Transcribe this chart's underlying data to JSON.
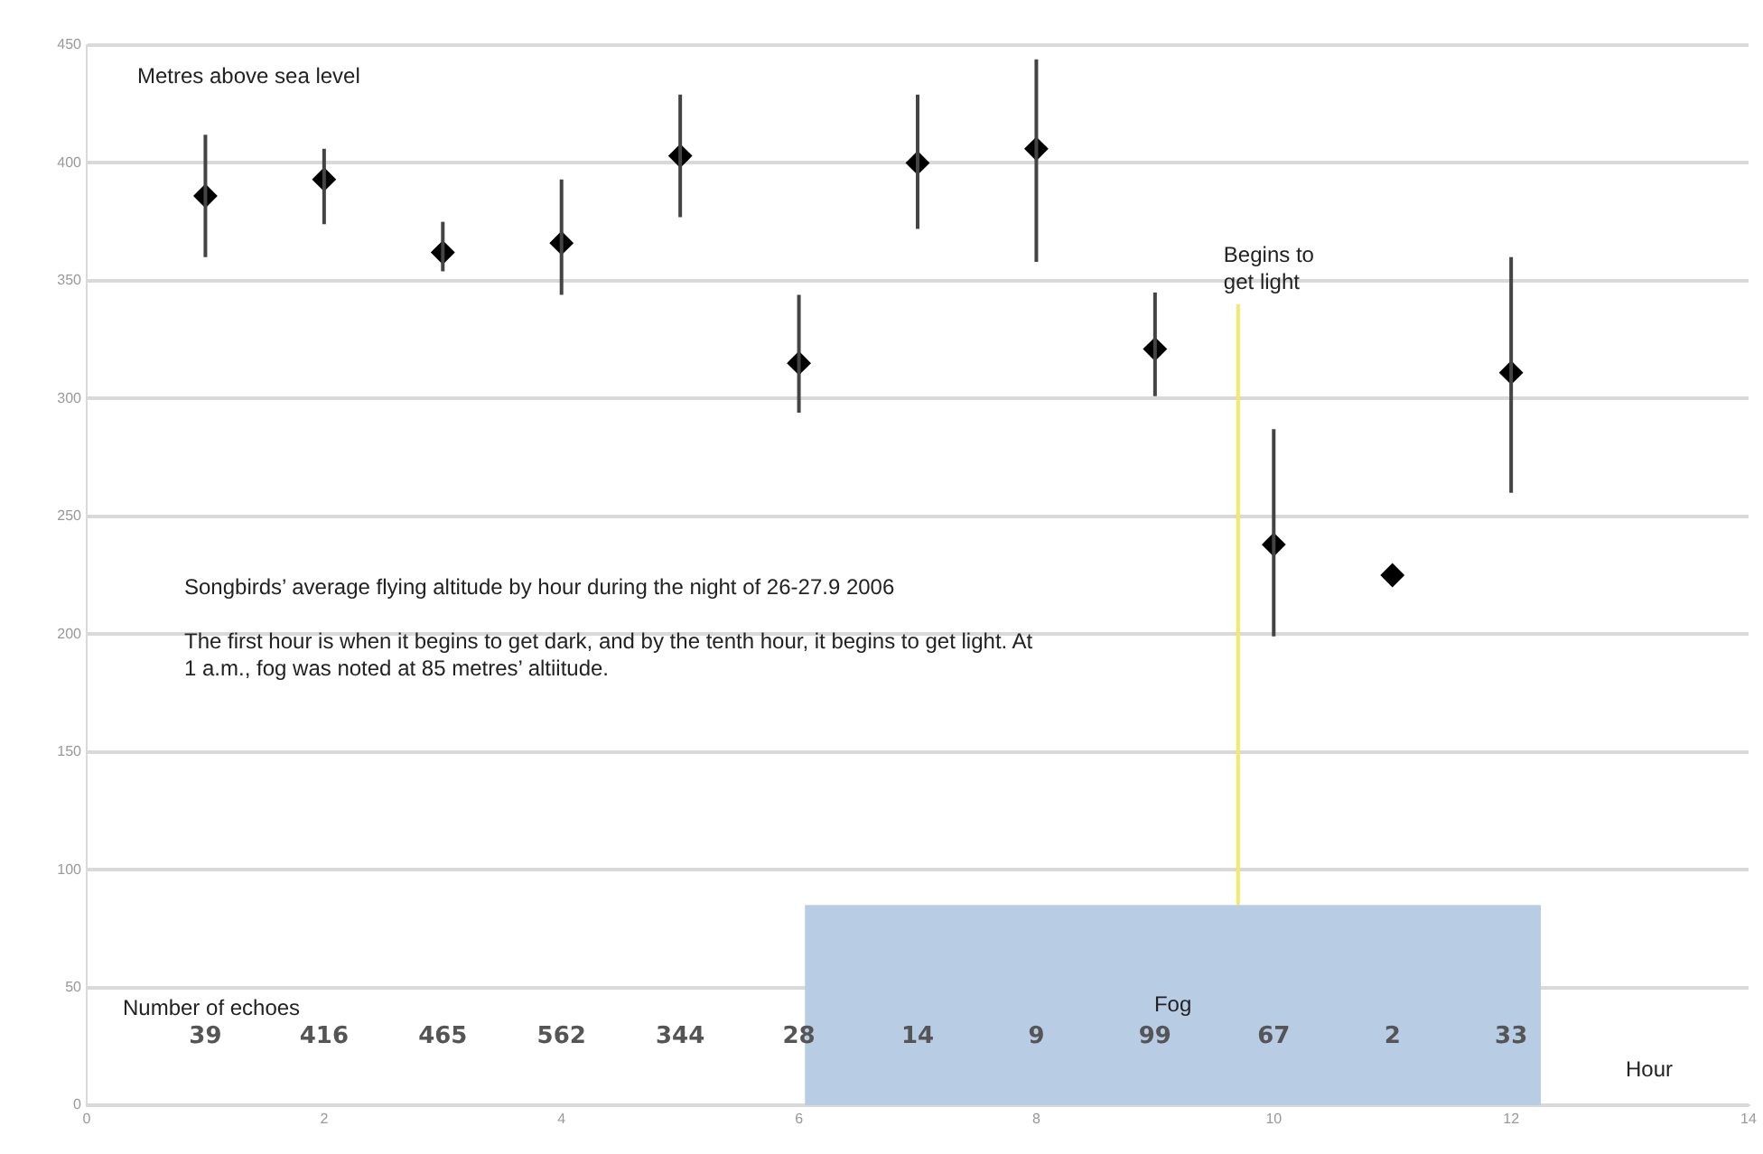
{
  "chart_data": {
    "type": "scatter",
    "title": "Songbirds’ average flying altitude by hour during the night of 26-27.9 2006",
    "subtitle": "The first hour is when it begins to get dark, and by the tenth hour, it begins to get light. At 1 a.m., fog was noted at 85 metres’ altiitude.",
    "ylabel": "Metres above sea level",
    "xlabel": "Hour",
    "xlim": [
      0,
      14
    ],
    "xticks": [
      0,
      2,
      4,
      6,
      8,
      10,
      12,
      14
    ],
    "ylim": [
      0,
      450
    ],
    "yticks": [
      0,
      50,
      100,
      150,
      200,
      250,
      300,
      350,
      400,
      450
    ],
    "grid": "y",
    "legend": false,
    "series": [
      {
        "type": "area",
        "name": "Fog",
        "color": "#b8cce4",
        "marker": "none",
        "x": [
          6.05,
          12.25
        ],
        "values": [
          85,
          85
        ]
      },
      {
        "type": "line",
        "color": "#f5e86a",
        "marker": "none",
        "x": [
          9.7,
          9.7
        ],
        "values": [
          85,
          340
        ]
      },
      {
        "color": "#000000",
        "marker": "diamond",
        "x": [
          1,
          2,
          3,
          4,
          5,
          6,
          7,
          8,
          9,
          10,
          11,
          12
        ],
        "values": [
          386,
          393,
          362,
          366,
          403,
          315,
          400,
          406,
          321,
          238,
          225,
          311
        ],
        "errors": [
          [
            360,
            412
          ],
          [
            374,
            406
          ],
          [
            354,
            375
          ],
          [
            344,
            393
          ],
          [
            377,
            429
          ],
          [
            294,
            344
          ],
          [
            372,
            429
          ],
          [
            358,
            444
          ],
          [
            301,
            345
          ],
          [
            199,
            287
          ],
          null,
          [
            260,
            360
          ]
        ]
      }
    ],
    "annotations": [
      "Number of echoes",
      "39",
      "416",
      "465",
      "562",
      "344",
      "28",
      "14",
      "9",
      "99",
      "67",
      "2",
      "33",
      "Begins to get light"
    ]
  }
}
